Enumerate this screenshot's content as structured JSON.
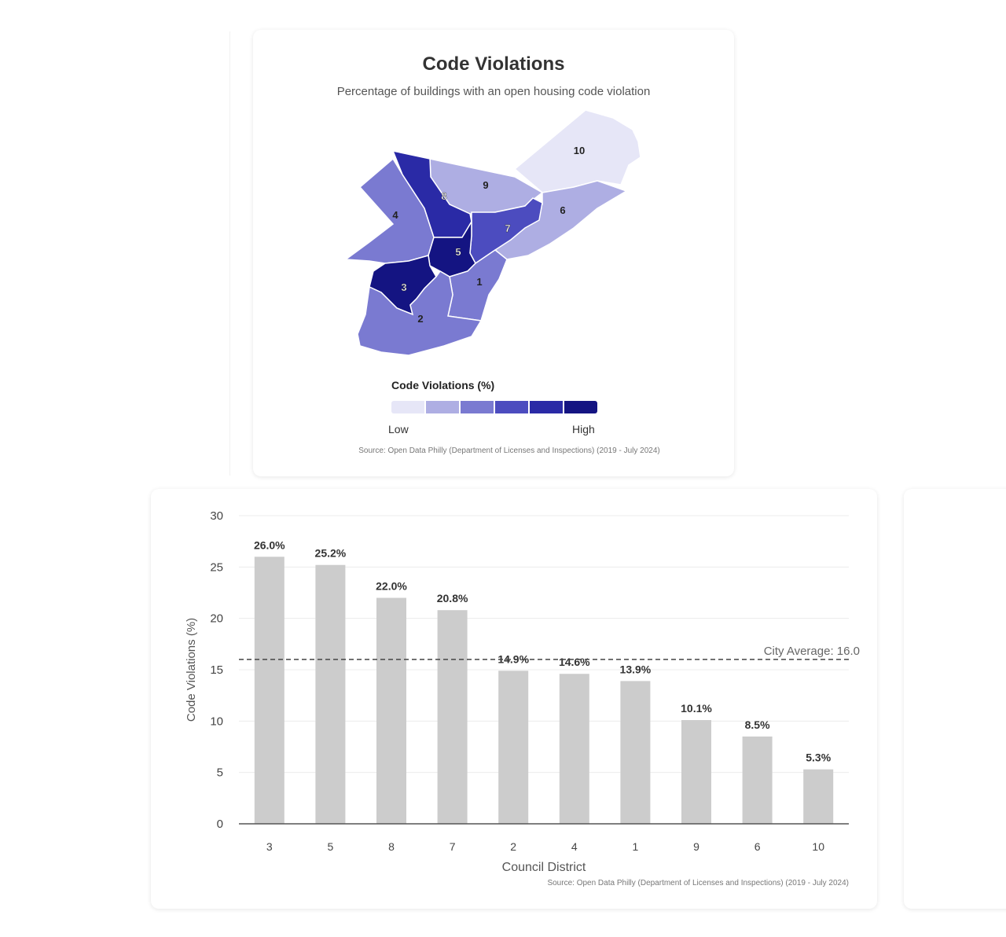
{
  "map_card": {
    "title": "Code Violations",
    "subtitle": "Percentage of buildings with an open housing code violation",
    "legend": {
      "title": "Code Violations (%)",
      "low_label": "Low",
      "high_label": "High",
      "colors": [
        "#e6e6f7",
        "#aeaee3",
        "#7a7ad1",
        "#4c4cbf",
        "#2a2aa6",
        "#141482"
      ]
    },
    "source": "Source: Open Data Philly (Department of Licenses and Inspections) (2019 - July 2024)",
    "district_labels": [
      "10",
      "8",
      "9",
      "4",
      "6",
      "7",
      "5",
      "3",
      "1",
      "2"
    ]
  },
  "chart_data": {
    "type": "bar",
    "categories": [
      "3",
      "5",
      "8",
      "7",
      "2",
      "4",
      "1",
      "9",
      "6",
      "10"
    ],
    "values": [
      26.0,
      25.2,
      22.0,
      20.8,
      14.9,
      14.6,
      13.9,
      10.1,
      8.5,
      5.3
    ],
    "data_labels": [
      "26.0%",
      "25.2%",
      "22.0%",
      "20.8%",
      "14.9%",
      "14.6%",
      "13.9%",
      "10.1%",
      "8.5%",
      "5.3%"
    ],
    "xlabel": "Council District",
    "ylabel": "Code Violations (%)",
    "ylim": [
      0,
      30
    ],
    "yticks": [
      0,
      5,
      10,
      15,
      20,
      25,
      30
    ],
    "reference_line": {
      "value": 16.0,
      "label": "City Average: 16.0"
    },
    "source": "Source: Open Data Philly (Department of Licenses and Inspections) (2019 - July 2024)",
    "bar_color": "#cccccc",
    "grid": true
  }
}
